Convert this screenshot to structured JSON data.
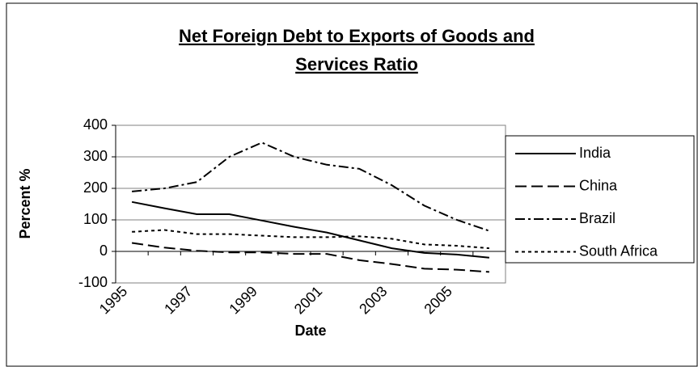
{
  "chart_data": {
    "type": "line",
    "title": [
      "Net Foreign Debt to Exports of Goods and",
      "Services Ratio"
    ],
    "x_label": "Date",
    "y_label": "Percent %",
    "categories": [
      "1995",
      null,
      "1997",
      null,
      "1999",
      null,
      "2001",
      null,
      "2003",
      null,
      "2005",
      null
    ],
    "series": [
      {
        "name": "India",
        "color": "#000000",
        "dash": "solid",
        "values": [
          157,
          137,
          118,
          118,
          98,
          78,
          60,
          35,
          10,
          -5,
          -10,
          -20
        ]
      },
      {
        "name": "China",
        "color": "#000000",
        "dash": "long-dash",
        "values": [
          27,
          12,
          2,
          -3,
          -3,
          -8,
          -8,
          -28,
          -40,
          -55,
          -58,
          -65
        ]
      },
      {
        "name": "Brazil",
        "color": "#000000",
        "dash": "dash-dot",
        "values": [
          190,
          200,
          220,
          300,
          345,
          300,
          275,
          262,
          210,
          145,
          100,
          65
        ]
      },
      {
        "name": "South Africa",
        "color": "#000000",
        "dash": "dot",
        "values": [
          62,
          68,
          55,
          55,
          50,
          45,
          45,
          48,
          40,
          22,
          18,
          10
        ]
      }
    ],
    "ylim": [
      -100,
      400
    ],
    "yticks": [
      -100,
      0,
      100,
      200,
      300,
      400
    ],
    "grid": true,
    "legend": "right"
  }
}
